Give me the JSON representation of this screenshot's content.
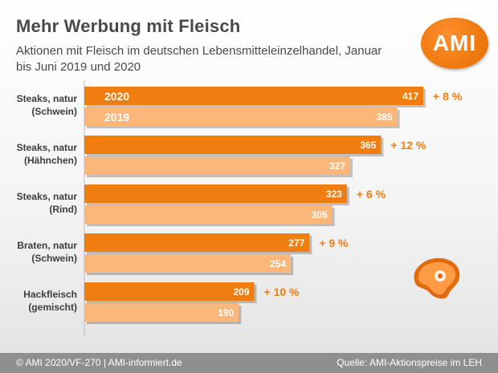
{
  "header": {
    "title": "Mehr Werbung mit Fleisch",
    "subtitle": "Aktionen mit Fleisch im deutschen Lebensmitteleinzelhandel, Januar bis Juni 2019 und 2020",
    "logo_text": "AMI"
  },
  "footer": {
    "left": "© AMI 2020/VF-270 | AMI-informiert.de",
    "right": "Quelle: AMI-Aktionspreise im LEH"
  },
  "decor": {
    "meat_icon": "steak-icon"
  },
  "colors": {
    "bar_2020": "#f07d0f",
    "bar_2019": "#fbb77a",
    "change_text": "#f07d0f",
    "text": "#3c3c3c"
  },
  "chart_data": {
    "type": "bar",
    "orientation": "horizontal",
    "title": "Mehr Werbung mit Fleisch",
    "categories": [
      [
        "Steaks, natur",
        "(Schwein)"
      ],
      [
        "Steaks, natur",
        "(Hähnchen)"
      ],
      [
        "Steaks, natur",
        "(Rind)"
      ],
      [
        "Braten, natur",
        "(Schwein)"
      ],
      [
        "Hackfleisch",
        "(gemischt)"
      ]
    ],
    "series": [
      {
        "name": "2020",
        "values": [
          417,
          365,
          323,
          277,
          209
        ]
      },
      {
        "name": "2019",
        "values": [
          385,
          327,
          305,
          254,
          190
        ]
      }
    ],
    "changes": [
      "+ 8 %",
      "+ 12 %",
      "+ 6 %",
      "+ 9 %",
      "+ 10 %"
    ],
    "xlim": [
      0,
      450
    ],
    "grid": false,
    "legend": "inside first group bars"
  }
}
